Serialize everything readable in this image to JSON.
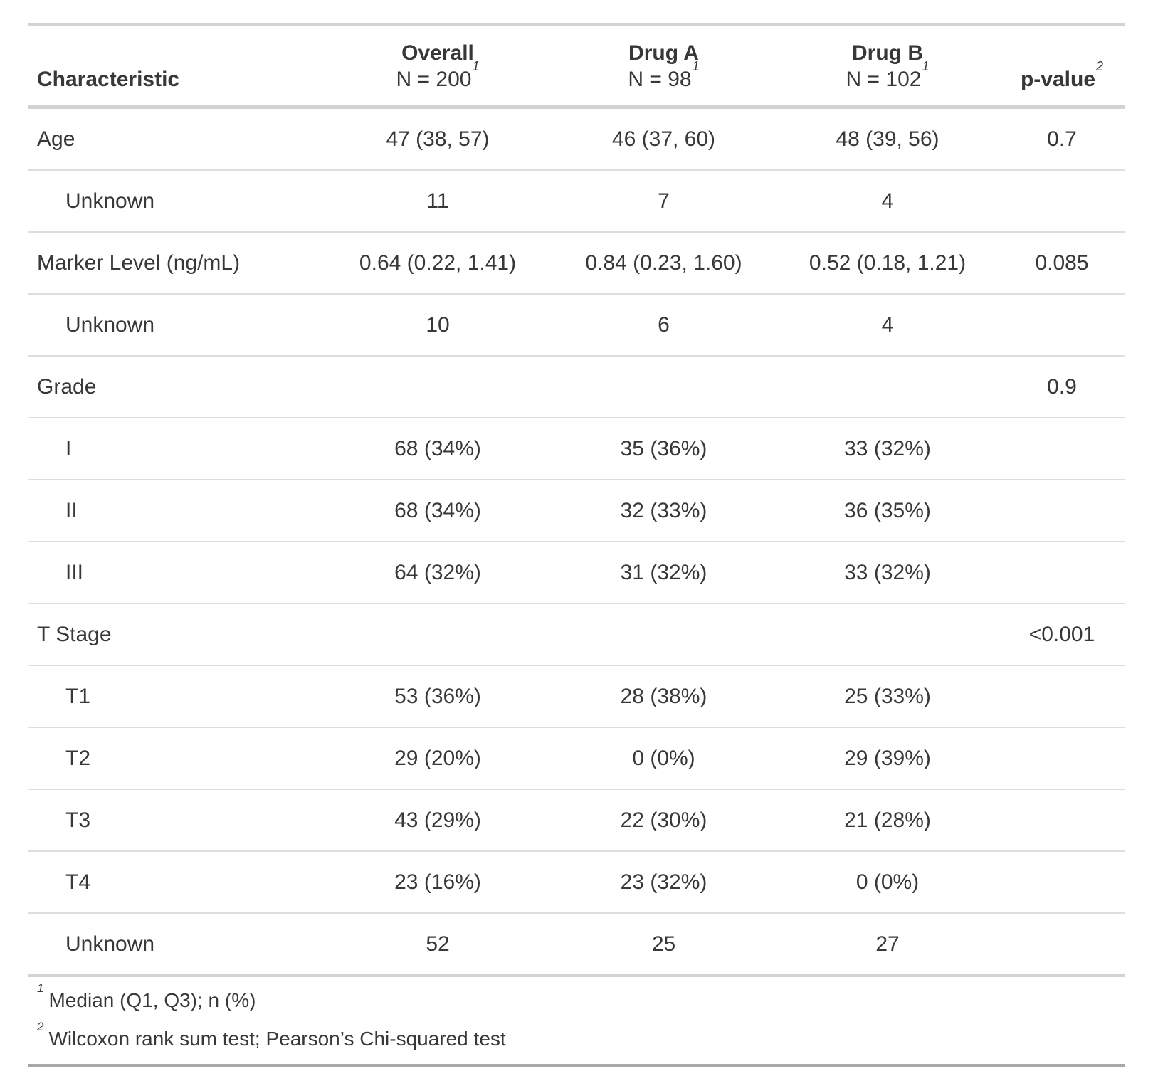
{
  "chart_data": {
    "type": "table",
    "columns": [
      {
        "label": "Characteristic"
      },
      {
        "label": "Overall",
        "n_label": "N = 200",
        "footnote_mark": "1"
      },
      {
        "label": "Drug A",
        "n_label": "N = 98",
        "footnote_mark": "1"
      },
      {
        "label": "Drug B",
        "n_label": "N = 102",
        "footnote_mark": "1"
      },
      {
        "label": "p-value",
        "footnote_mark": "2"
      }
    ],
    "rows": [
      {
        "label": "Age",
        "indent": false,
        "overall": "47 (38, 57)",
        "drug_a": "46 (37, 60)",
        "drug_b": "48 (39, 56)",
        "p": "0.7"
      },
      {
        "label": "Unknown",
        "indent": true,
        "overall": "11",
        "drug_a": "7",
        "drug_b": "4",
        "p": ""
      },
      {
        "label": "Marker Level (ng/mL)",
        "indent": false,
        "overall": "0.64 (0.22, 1.41)",
        "drug_a": "0.84 (0.23, 1.60)",
        "drug_b": "0.52 (0.18, 1.21)",
        "p": "0.085"
      },
      {
        "label": "Unknown",
        "indent": true,
        "overall": "10",
        "drug_a": "6",
        "drug_b": "4",
        "p": ""
      },
      {
        "label": "Grade",
        "indent": false,
        "overall": "",
        "drug_a": "",
        "drug_b": "",
        "p": "0.9"
      },
      {
        "label": "I",
        "indent": true,
        "overall": "68 (34%)",
        "drug_a": "35 (36%)",
        "drug_b": "33 (32%)",
        "p": ""
      },
      {
        "label": "II",
        "indent": true,
        "overall": "68 (34%)",
        "drug_a": "32 (33%)",
        "drug_b": "36 (35%)",
        "p": ""
      },
      {
        "label": "III",
        "indent": true,
        "overall": "64 (32%)",
        "drug_a": "31 (32%)",
        "drug_b": "33 (32%)",
        "p": ""
      },
      {
        "label": "T Stage",
        "indent": false,
        "overall": "",
        "drug_a": "",
        "drug_b": "",
        "p": "<0.001"
      },
      {
        "label": "T1",
        "indent": true,
        "overall": "53 (36%)",
        "drug_a": "28 (38%)",
        "drug_b": "25 (33%)",
        "p": ""
      },
      {
        "label": "T2",
        "indent": true,
        "overall": "29 (20%)",
        "drug_a": "0 (0%)",
        "drug_b": "29 (39%)",
        "p": ""
      },
      {
        "label": "T3",
        "indent": true,
        "overall": "43 (29%)",
        "drug_a": "22 (30%)",
        "drug_b": "21 (28%)",
        "p": ""
      },
      {
        "label": "T4",
        "indent": true,
        "overall": "23 (16%)",
        "drug_a": "23 (32%)",
        "drug_b": "0 (0%)",
        "p": ""
      },
      {
        "label": "Unknown",
        "indent": true,
        "overall": "52",
        "drug_a": "25",
        "drug_b": "27",
        "p": ""
      }
    ],
    "footnotes": [
      {
        "mark": "1",
        "text": "Median (Q1, Q3); n (%)"
      },
      {
        "mark": "2",
        "text": "Wilcoxon rank sum test; Pearson’s Chi-squared test"
      }
    ]
  }
}
